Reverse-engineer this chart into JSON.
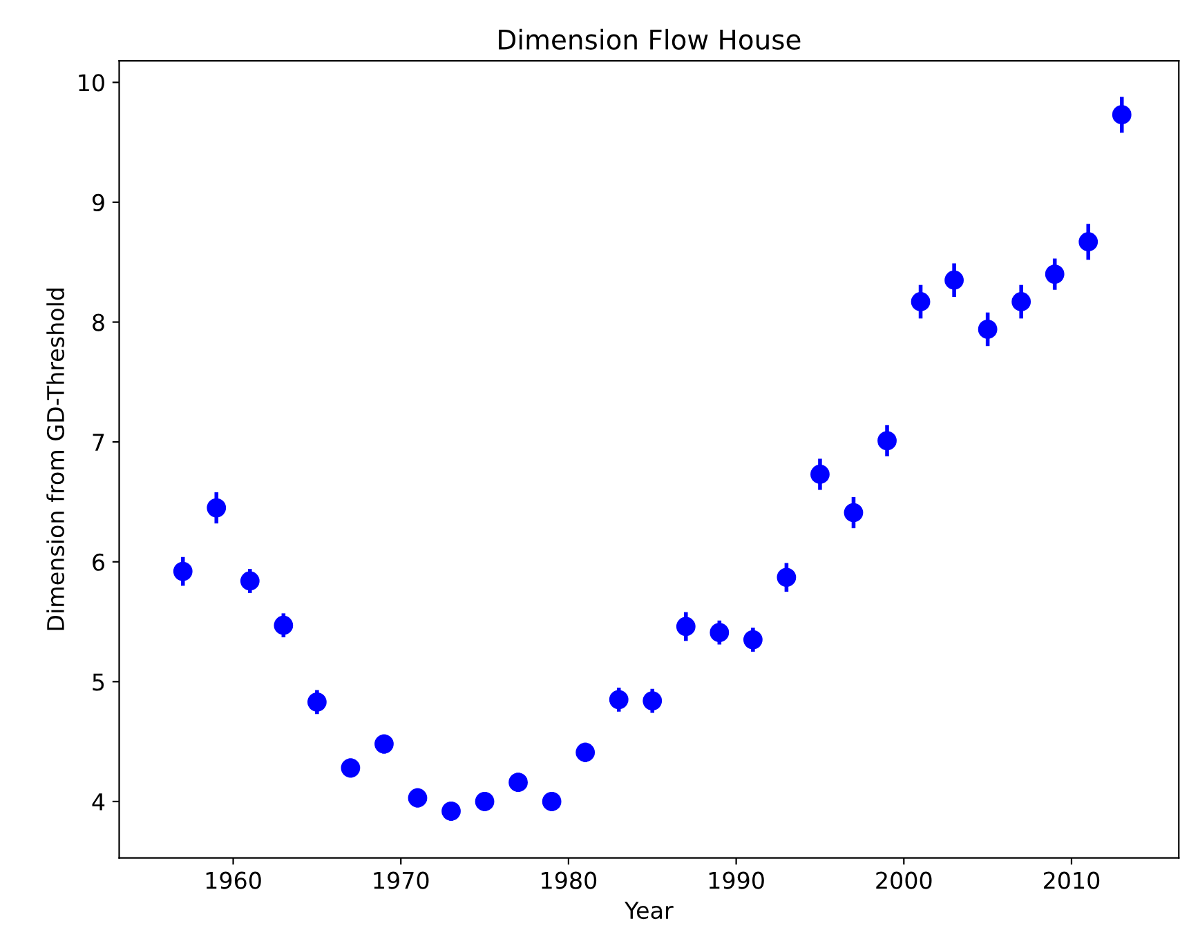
{
  "chart_data": {
    "type": "scatter",
    "title": "Dimension Flow House",
    "xlabel": "Year",
    "ylabel": "Dimension from GD-Threshold",
    "x": [
      1957,
      1959,
      1961,
      1963,
      1965,
      1967,
      1969,
      1971,
      1973,
      1975,
      1977,
      1979,
      1981,
      1983,
      1985,
      1987,
      1989,
      1991,
      1993,
      1995,
      1997,
      1999,
      2001,
      2003,
      2005,
      2007,
      2009,
      2011,
      2013
    ],
    "series": [
      {
        "color": "#0000ff",
        "values": [
          5.92,
          6.45,
          5.84,
          5.47,
          4.83,
          4.28,
          4.48,
          4.03,
          3.92,
          4.0,
          4.16,
          4.0,
          4.41,
          4.85,
          4.84,
          5.46,
          5.41,
          5.35,
          5.87,
          6.73,
          6.41,
          7.01,
          8.17,
          8.35,
          7.94,
          8.17,
          8.4,
          8.67,
          9.73
        ],
        "errors": [
          0.12,
          0.13,
          0.1,
          0.1,
          0.1,
          0.08,
          0.08,
          0.08,
          0.08,
          0.08,
          0.08,
          0.08,
          0.08,
          0.1,
          0.1,
          0.12,
          0.1,
          0.1,
          0.12,
          0.13,
          0.13,
          0.13,
          0.14,
          0.14,
          0.14,
          0.14,
          0.13,
          0.15,
          0.15
        ]
      }
    ],
    "xlim": [
      1953.2,
      2016.4
    ],
    "ylim": [
      3.53,
      10.18
    ],
    "xticks": [
      1960,
      1970,
      1980,
      1990,
      2000,
      2010
    ],
    "yticks": [
      4,
      5,
      6,
      7,
      8,
      9,
      10
    ],
    "marker": "circle",
    "grid": false,
    "legend": false
  }
}
